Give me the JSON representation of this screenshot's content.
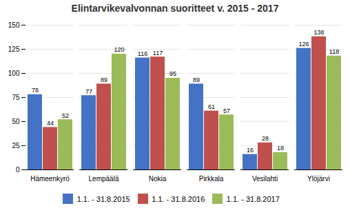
{
  "chart_data": {
    "type": "bar",
    "title": "Elintarvikevalvonnan suoritteet v. 2015 - 2017",
    "categories": [
      "Hämeenkyrö",
      "Lempäälä",
      "Nokia",
      "Pirkkala",
      "Vesilahti",
      "Ylöjärvi"
    ],
    "series": [
      {
        "name": "1.1. - 31.8.2015",
        "color": "#4472C4",
        "values": [
          78,
          77,
          116,
          89,
          16,
          126
        ]
      },
      {
        "name": "1.1. - 31.8.2016",
        "color": "#C0504D",
        "values": [
          44,
          89,
          117,
          61,
          28,
          138
        ]
      },
      {
        "name": "1.1. - 31.8.2017",
        "color": "#9BBB59",
        "values": [
          52,
          120,
          95,
          57,
          18,
          118
        ]
      }
    ],
    "ylim": [
      0,
      150
    ],
    "yticks": [
      0,
      25,
      50,
      75,
      100,
      125,
      150
    ],
    "grid": true,
    "data_labels": true,
    "legend": "bottom"
  }
}
